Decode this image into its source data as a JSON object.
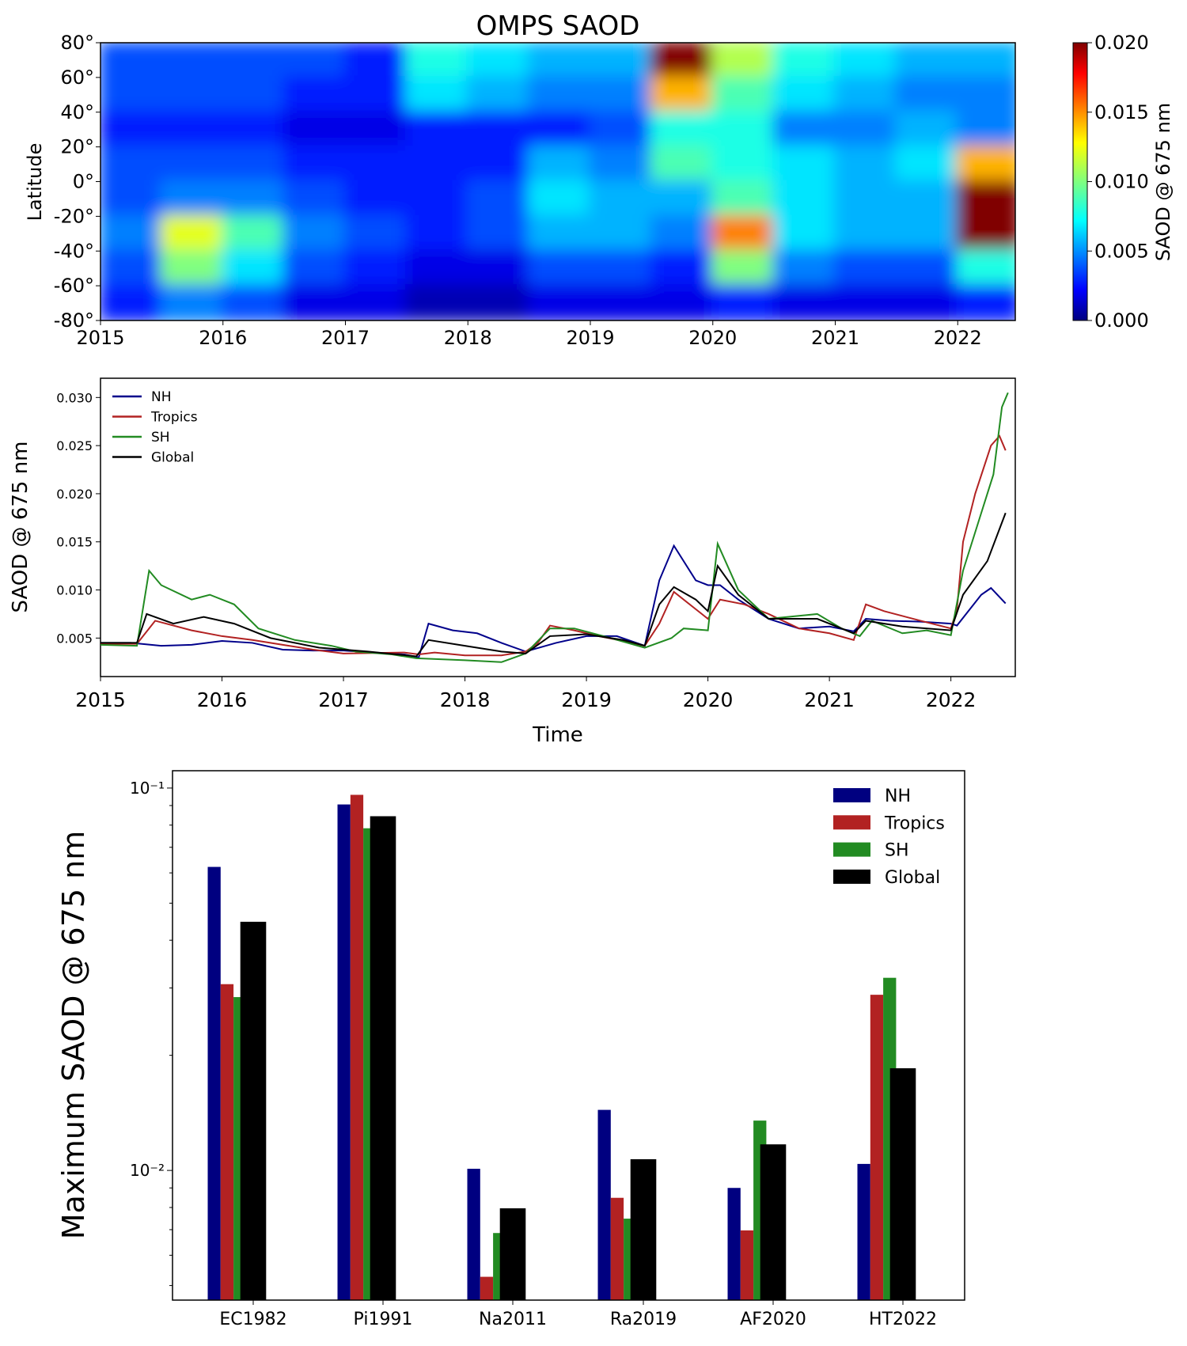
{
  "chart_data": [
    {
      "type": "heatmap",
      "title": "OMPS SAOD",
      "ylabel": "Latitude",
      "colorbar_label": "SAOD @ 675 nm",
      "colormap": "jet",
      "clim": [
        0,
        0.02
      ],
      "xlim": [
        2015,
        2022.47
      ],
      "ylim": [
        -80,
        80
      ],
      "x_ticks": [
        "2015",
        "2016",
        "2017",
        "2018",
        "2019",
        "2020",
        "2021",
        "2022"
      ],
      "y_ticks": [
        "80°",
        "60°",
        "40°",
        "20°",
        "0°",
        "-20°",
        "-40°",
        "-60°",
        "-80°"
      ],
      "colorbar_ticks": [
        "0.000",
        "0.005",
        "0.010",
        "0.015",
        "0.020"
      ],
      "x_bins": [
        2015.0,
        2015.5,
        2016.0,
        2016.5,
        2017.0,
        2017.5,
        2018.0,
        2018.5,
        2019.0,
        2019.5,
        2020.0,
        2020.5,
        2021.0,
        2021.5,
        2022.0
      ],
      "lat_bins": [
        70,
        50,
        30,
        10,
        -10,
        -30,
        -50,
        -70
      ],
      "values": [
        [
          0.004,
          0.004,
          0.003,
          0.004,
          0.004,
          0.005,
          0.004,
          0.003
        ],
        [
          0.004,
          0.004,
          0.003,
          0.004,
          0.005,
          0.012,
          0.01,
          0.005
        ],
        [
          0.004,
          0.004,
          0.003,
          0.004,
          0.005,
          0.009,
          0.007,
          0.004
        ],
        [
          0.004,
          0.003,
          0.002,
          0.003,
          0.004,
          0.005,
          0.004,
          0.002
        ],
        [
          0.003,
          0.003,
          0.002,
          0.003,
          0.003,
          0.004,
          0.003,
          0.002
        ],
        [
          0.008,
          0.007,
          0.003,
          0.003,
          0.003,
          0.003,
          0.002,
          0.001
        ],
        [
          0.007,
          0.006,
          0.003,
          0.003,
          0.004,
          0.004,
          0.002,
          0.001
        ],
        [
          0.006,
          0.005,
          0.003,
          0.006,
          0.007,
          0.006,
          0.004,
          0.002
        ],
        [
          0.006,
          0.005,
          0.004,
          0.005,
          0.006,
          0.006,
          0.004,
          0.002
        ],
        [
          0.022,
          0.014,
          0.008,
          0.009,
          0.006,
          0.005,
          0.003,
          0.002
        ],
        [
          0.011,
          0.009,
          0.008,
          0.008,
          0.009,
          0.015,
          0.01,
          0.003
        ],
        [
          0.008,
          0.007,
          0.005,
          0.007,
          0.007,
          0.007,
          0.005,
          0.002
        ],
        [
          0.007,
          0.006,
          0.005,
          0.006,
          0.006,
          0.006,
          0.004,
          0.002
        ],
        [
          0.006,
          0.005,
          0.006,
          0.007,
          0.006,
          0.006,
          0.004,
          0.002
        ],
        [
          0.006,
          0.005,
          0.005,
          0.014,
          0.025,
          0.02,
          0.008,
          0.003
        ]
      ]
    },
    {
      "type": "line",
      "xlabel": "Time",
      "ylabel": "SAOD @ 675 nm",
      "xlim": [
        2015,
        2022.53
      ],
      "ylim": [
        0.001,
        0.032
      ],
      "x_ticks": [
        "2015",
        "2016",
        "2017",
        "2018",
        "2019",
        "2020",
        "2021",
        "2022"
      ],
      "y_ticks": [
        "0.005",
        "0.010",
        "0.015",
        "0.020",
        "0.025",
        "0.030"
      ],
      "legend": "top-left",
      "series": [
        {
          "name": "NH",
          "color": "#00008b",
          "x": [
            2015,
            2015.25,
            2015.5,
            2015.75,
            2016,
            2016.25,
            2016.5,
            2016.75,
            2017,
            2017.25,
            2017.5,
            2017.62,
            2017.7,
            2017.9,
            2018.1,
            2018.3,
            2018.5,
            2018.75,
            2019,
            2019.25,
            2019.48,
            2019.6,
            2019.72,
            2019.9,
            2020,
            2020.1,
            2020.25,
            2020.5,
            2020.75,
            2021,
            2021.2,
            2021.3,
            2021.5,
            2021.75,
            2022,
            2022.05,
            2022.25,
            2022.33,
            2022.45
          ],
          "y": [
            0.0045,
            0.0045,
            0.0042,
            0.0043,
            0.0047,
            0.0045,
            0.0038,
            0.0037,
            0.0037,
            0.0035,
            0.0033,
            0.003,
            0.0065,
            0.0058,
            0.0055,
            0.0045,
            0.0036,
            0.0045,
            0.0052,
            0.0052,
            0.0042,
            0.011,
            0.0146,
            0.011,
            0.0105,
            0.0105,
            0.009,
            0.007,
            0.006,
            0.0062,
            0.0057,
            0.007,
            0.0068,
            0.0067,
            0.0065,
            0.0063,
            0.0095,
            0.0102,
            0.0086
          ]
        },
        {
          "name": "Tropics",
          "color": "#b22222",
          "x": [
            2015,
            2015.3,
            2015.45,
            2015.75,
            2016,
            2016.25,
            2016.5,
            2016.75,
            2017,
            2017.5,
            2017.62,
            2017.75,
            2018,
            2018.3,
            2018.5,
            2018.6,
            2018.7,
            2018.9,
            2019.1,
            2019.3,
            2019.48,
            2019.6,
            2019.72,
            2019.9,
            2020,
            2020.1,
            2020.3,
            2020.5,
            2020.75,
            2021,
            2021.2,
            2021.3,
            2021.45,
            2021.75,
            2022,
            2022.05,
            2022.1,
            2022.2,
            2022.33,
            2022.4,
            2022.45
          ],
          "y": [
            0.0044,
            0.0044,
            0.0068,
            0.0058,
            0.0052,
            0.0048,
            0.0043,
            0.0038,
            0.0034,
            0.0035,
            0.0033,
            0.0035,
            0.0032,
            0.0032,
            0.0036,
            0.0045,
            0.0063,
            0.0058,
            0.0052,
            0.0047,
            0.0042,
            0.0065,
            0.0098,
            0.008,
            0.007,
            0.009,
            0.0085,
            0.0075,
            0.006,
            0.0055,
            0.0048,
            0.0085,
            0.0078,
            0.0068,
            0.006,
            0.008,
            0.015,
            0.02,
            0.025,
            0.026,
            0.0245
          ]
        },
        {
          "name": "SH",
          "color": "#228b22",
          "x": [
            2015,
            2015.3,
            2015.4,
            2015.5,
            2015.75,
            2015.9,
            2016.1,
            2016.3,
            2016.6,
            2016.9,
            2017.1,
            2017.4,
            2017.6,
            2018,
            2018.3,
            2018.5,
            2018.7,
            2018.9,
            2019.2,
            2019.48,
            2019.7,
            2019.8,
            2020,
            2020.08,
            2020.25,
            2020.5,
            2020.9,
            2021.1,
            2021.25,
            2021.35,
            2021.6,
            2021.8,
            2022,
            2022.1,
            2022.25,
            2022.35,
            2022.42,
            2022.47
          ],
          "y": [
            0.0043,
            0.0042,
            0.012,
            0.0105,
            0.009,
            0.0095,
            0.0085,
            0.006,
            0.0048,
            0.0042,
            0.0036,
            0.0033,
            0.0029,
            0.0027,
            0.0025,
            0.0034,
            0.006,
            0.006,
            0.005,
            0.004,
            0.005,
            0.006,
            0.0058,
            0.0148,
            0.01,
            0.007,
            0.0075,
            0.006,
            0.0052,
            0.0068,
            0.0055,
            0.0058,
            0.0053,
            0.012,
            0.018,
            0.022,
            0.029,
            0.0305
          ]
        },
        {
          "name": "Global",
          "color": "#000000",
          "x": [
            2015,
            2015.3,
            2015.38,
            2015.6,
            2015.85,
            2016.1,
            2016.4,
            2016.8,
            2017.2,
            2017.6,
            2017.7,
            2018,
            2018.3,
            2018.5,
            2018.7,
            2019,
            2019.3,
            2019.48,
            2019.6,
            2019.72,
            2019.9,
            2020,
            2020.08,
            2020.25,
            2020.5,
            2020.9,
            2021.2,
            2021.3,
            2021.6,
            2022,
            2022.1,
            2022.3,
            2022.45
          ],
          "y": [
            0.0045,
            0.0045,
            0.0075,
            0.0065,
            0.0072,
            0.0065,
            0.005,
            0.004,
            0.0036,
            0.0031,
            0.0048,
            0.0042,
            0.0036,
            0.0034,
            0.0052,
            0.0054,
            0.0048,
            0.0042,
            0.0085,
            0.0103,
            0.009,
            0.0078,
            0.0125,
            0.0095,
            0.007,
            0.007,
            0.0055,
            0.0068,
            0.0062,
            0.0058,
            0.0095,
            0.013,
            0.018
          ]
        }
      ]
    },
    {
      "type": "bar",
      "ylabel": "Maximum SAOD @ 675 nm",
      "yscale": "log",
      "ylim": [
        0.00458,
        0.111
      ],
      "y_ticks": [
        "10⁻¹",
        "10⁻²"
      ],
      "legend": "top-right",
      "categories": [
        "EC1982",
        "Pi1991",
        "Na2011",
        "Ra2019",
        "AF2020",
        "HT2022"
      ],
      "series": [
        {
          "name": "NH",
          "color": "#000080",
          "values": [
            0.0622,
            0.0906,
            0.0101,
            0.0144,
            0.009,
            0.0104
          ]
        },
        {
          "name": "Tropics",
          "color": "#b22222",
          "values": [
            0.0307,
            0.096,
            0.00527,
            0.00848,
            0.00697,
            0.0288
          ]
        },
        {
          "name": "SH",
          "color": "#228b22",
          "values": [
            0.0284,
            0.0785,
            0.00686,
            0.00748,
            0.0135,
            0.0319
          ]
        },
        {
          "name": "Global",
          "color": "#000000",
          "values": [
            0.0447,
            0.0844,
            0.00796,
            0.0107,
            0.0117,
            0.0185
          ]
        }
      ]
    }
  ]
}
